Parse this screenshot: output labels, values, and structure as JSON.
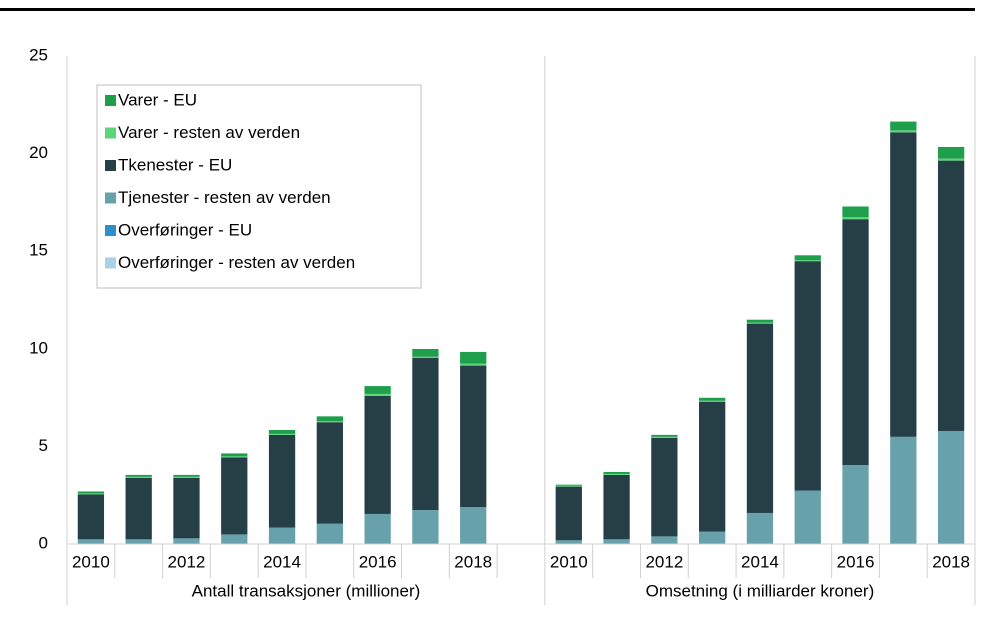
{
  "chart_data": {
    "type": "stacked-bar",
    "groups": [
      "Antall transaksjoner (millioner)",
      "Omsetning (i milliarder kroner)"
    ],
    "categories": [
      "2010",
      null,
      "2012",
      null,
      "2014",
      null,
      "2016",
      null,
      "2018",
      "2010",
      null,
      "2012",
      null,
      "2014",
      null,
      "2016",
      null,
      "2018"
    ],
    "series": [
      {
        "name": "Overføringer - resten av verden",
        "color": "#a9d1e7",
        "values": [
          0.02,
          0.02,
          0.02,
          0.02,
          0.02,
          0.02,
          0.02,
          0.02,
          0.02,
          0.02,
          0.02,
          0.02,
          0.02,
          0.02,
          0.02,
          0.02,
          0.02,
          0.02
        ]
      },
      {
        "name": "Overføringer - EU",
        "color": "#2f8fcc",
        "values": [
          0.02,
          0.02,
          0.02,
          0.02,
          0.02,
          0.02,
          0.02,
          0.02,
          0.02,
          0.02,
          0.02,
          0.02,
          0.02,
          0.02,
          0.02,
          0.02,
          0.02,
          0.02
        ]
      },
      {
        "name": "Tjenester - resten av verden",
        "color": "#67a1ab",
        "values": [
          0.2,
          0.2,
          0.25,
          0.45,
          0.8,
          1.0,
          1.5,
          1.7,
          1.85,
          0.15,
          0.2,
          0.35,
          0.6,
          1.55,
          2.7,
          4.0,
          5.45,
          5.75
        ]
      },
      {
        "name": "Tkenester - EU",
        "color": "#263f47",
        "values": [
          2.3,
          3.15,
          3.1,
          3.95,
          4.75,
          5.2,
          6.05,
          7.8,
          7.25,
          2.75,
          3.3,
          5.05,
          6.65,
          9.7,
          11.75,
          12.6,
          15.6,
          13.85
        ]
      },
      {
        "name": "Varer - resten av verden",
        "color": "#5cd57b",
        "values": [
          0.05,
          0.05,
          0.05,
          0.05,
          0.05,
          0.05,
          0.1,
          0.05,
          0.1,
          0.05,
          0.05,
          0.05,
          0.05,
          0.05,
          0.05,
          0.1,
          0.1,
          0.1
        ]
      },
      {
        "name": "Varer - EU",
        "color": "#1f9e4b",
        "values": [
          0.1,
          0.1,
          0.1,
          0.15,
          0.2,
          0.25,
          0.4,
          0.4,
          0.6,
          0.05,
          0.1,
          0.1,
          0.15,
          0.15,
          0.25,
          0.55,
          0.45,
          0.6
        ]
      }
    ],
    "ylim": [
      0,
      25
    ],
    "yticks": [
      0,
      5,
      10,
      15,
      20,
      25
    ],
    "grid": false,
    "legend": "upper-left"
  }
}
